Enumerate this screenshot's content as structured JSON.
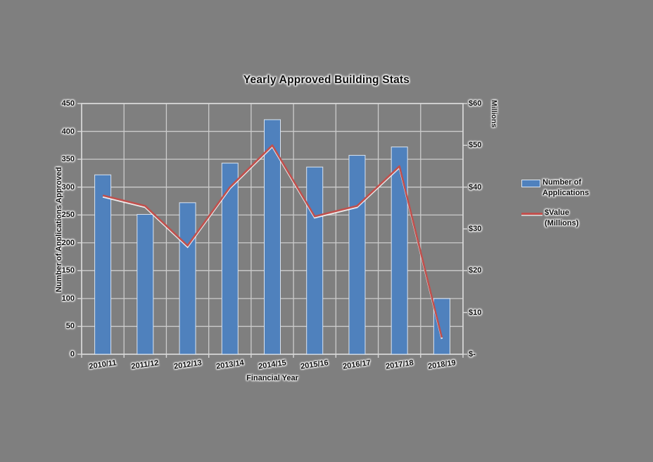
{
  "colors": {
    "background": "#7f7f7f",
    "bar_fill": "#4f81bd",
    "bar_border": "#dbe5f1",
    "line": "#c0504d",
    "line_halo": "#ffffff",
    "gridline": "#cccccc",
    "axis_line": "#d9d9d9",
    "text": "#0e0e0e"
  },
  "legend": {
    "items": [
      {
        "line1": "Number of",
        "line2": "Applications"
      },
      {
        "line1": "$Value",
        "line2": "(Millions)"
      }
    ]
  },
  "chart_data": {
    "type": "bar",
    "subtype": "bar-and-line-combo",
    "title": "Yearly Approved Building Stats",
    "xlabel": "Financial Year",
    "ylabel_left": "Number of Applications Approved",
    "ylabel_right": "Millions",
    "categories": [
      "2010/11",
      "2011/12",
      "2012/13",
      "2013/14",
      "2014/15",
      "2015/16",
      "2016/17",
      "2017/18",
      "2018/19"
    ],
    "series": [
      {
        "name": "Number of Applications",
        "type": "bar",
        "axis": "left",
        "values": [
          322,
          251,
          272,
          343,
          421,
          336,
          357,
          372,
          100
        ]
      },
      {
        "name": "$Value (Millions)",
        "type": "line",
        "axis": "right",
        "values": [
          38,
          35.5,
          26,
          40,
          50,
          33,
          35.5,
          45,
          4
        ]
      }
    ],
    "left_axis": {
      "min": 0,
      "max": 450,
      "step": 50,
      "tick_labels": [
        "0",
        "50",
        "100",
        "150",
        "200",
        "250",
        "300",
        "350",
        "400",
        "450"
      ]
    },
    "right_axis": {
      "min": 0,
      "max": 60,
      "step": 10,
      "tick_labels": [
        "$-",
        "$10",
        "$20",
        "$30",
        "$40",
        "$50",
        "$60"
      ]
    },
    "grid": "major horizontal and vertical gridlines on",
    "legend_position": "right"
  }
}
